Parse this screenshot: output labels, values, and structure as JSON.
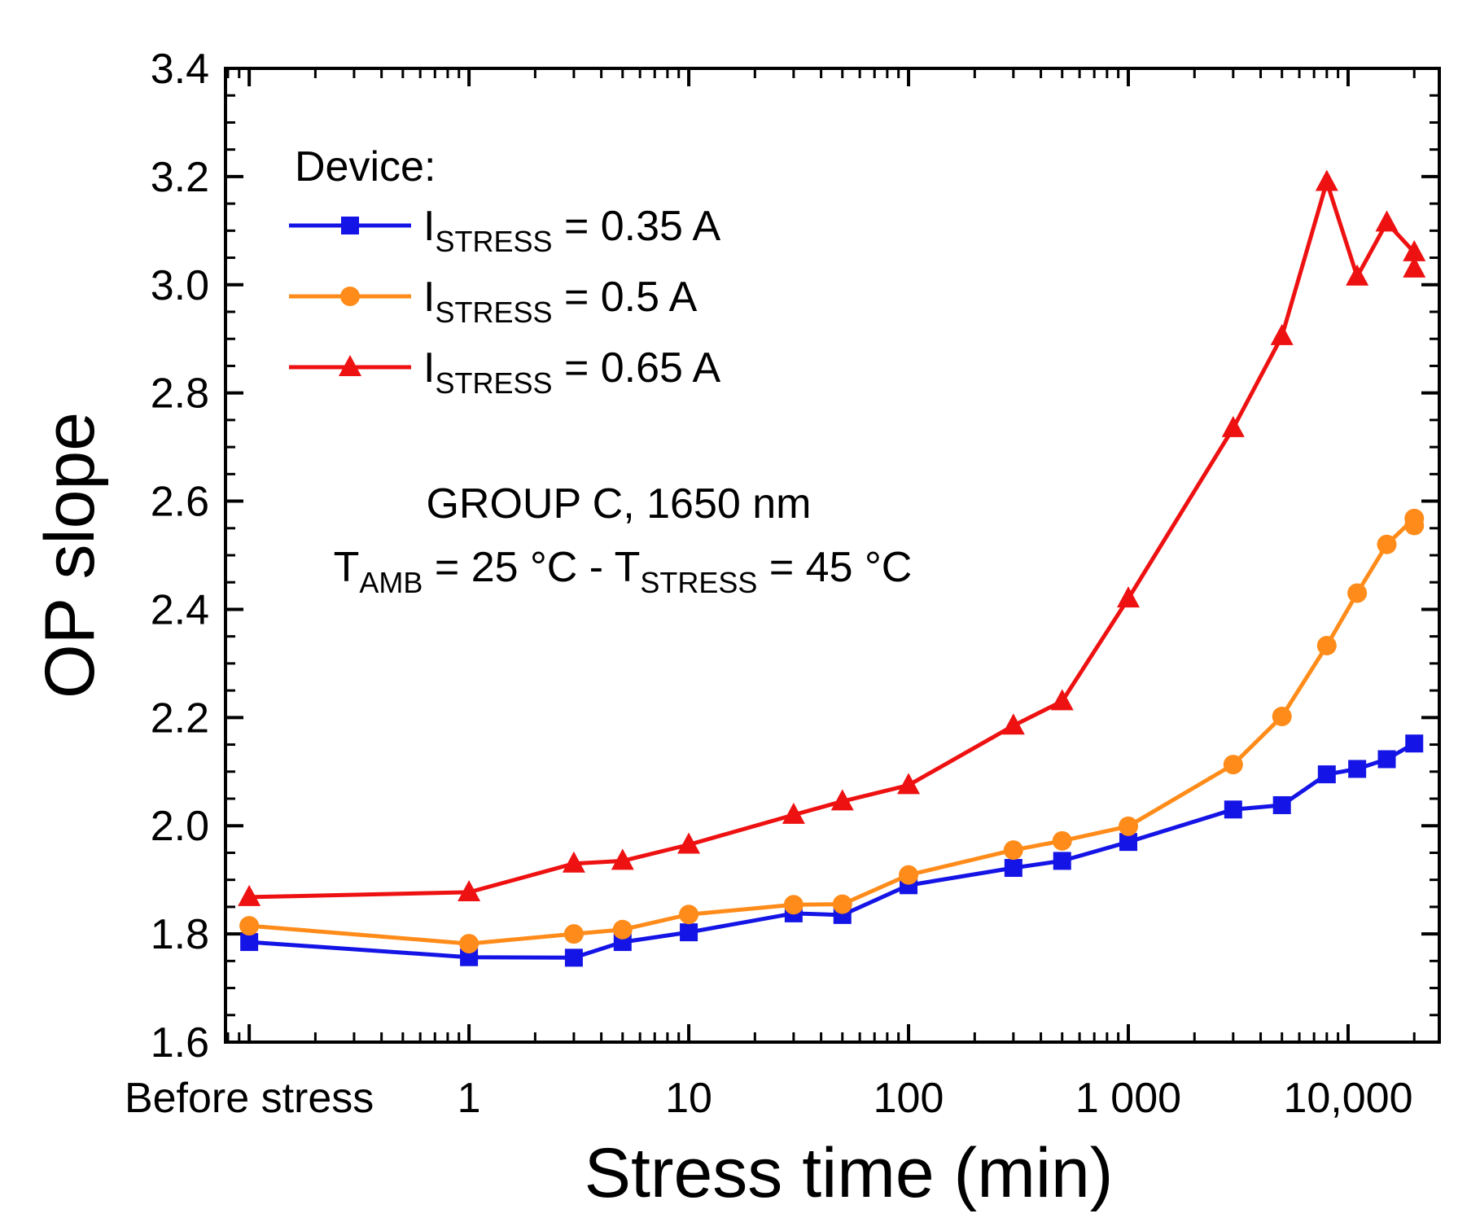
{
  "chart_data": {
    "type": "line",
    "xlabel": "Stress time (min)",
    "ylabel": "OP slope",
    "xscale": "log",
    "xlim": [
      0.078,
      26000
    ],
    "ylim": [
      1.6,
      3.4
    ],
    "yticks": [
      "1.6",
      "1.8",
      "2.0",
      "2.2",
      "2.4",
      "2.6",
      "2.8",
      "3.0",
      "3.2",
      "3.4"
    ],
    "xtick_labels": [
      "Before stress",
      "1",
      "10",
      "100",
      "1 000",
      "10,000"
    ],
    "xtick_values": [
      0.1,
      1,
      10,
      100,
      1000,
      10000
    ],
    "legend": {
      "title": "Device:",
      "items": [
        {
          "main": "I",
          "sub": "STRESS",
          "suffix": " = 0.35 A"
        },
        {
          "main": "I",
          "sub": "STRESS",
          "suffix": " = 0.5 A"
        },
        {
          "main": "I",
          "sub": "STRESS",
          "suffix": " = 0.65 A"
        }
      ]
    },
    "annotation": {
      "line1": "GROUP C, 1650 nm",
      "t1": "T",
      "t1_sub": "AMB",
      "mid": " = 25 °C - T",
      "t2_sub": "STRESS",
      "end": " = 45 °C"
    },
    "series": [
      {
        "name": "I_STRESS = 0.35 A",
        "color": "#1414e6",
        "marker": "square",
        "x": [
          0.1,
          1,
          3,
          5,
          10,
          30,
          50,
          100,
          300,
          500,
          1000,
          3000,
          5000,
          8000,
          11000,
          15000,
          20000
        ],
        "y": [
          1.785,
          1.757,
          1.756,
          1.785,
          1.803,
          1.838,
          1.835,
          1.89,
          1.922,
          1.935,
          1.97,
          2.03,
          2.038,
          2.095,
          2.105,
          2.123,
          2.152
        ]
      },
      {
        "name": "I_STRESS = 0.5 A",
        "color": "#ff8c1a",
        "marker": "circle",
        "x": [
          0.1,
          1,
          3,
          5,
          10,
          30,
          50,
          100,
          300,
          500,
          1000,
          3000,
          5000,
          8000,
          11000,
          15000,
          20000,
          20000
        ],
        "y": [
          1.815,
          1.782,
          1.8,
          1.808,
          1.836,
          1.854,
          1.855,
          1.909,
          1.955,
          1.972,
          1.999,
          2.113,
          2.202,
          2.333,
          2.43,
          2.52,
          2.568,
          2.555
        ]
      },
      {
        "name": "I_STRESS = 0.65 A",
        "color": "#ee1111",
        "marker": "triangle",
        "x": [
          0.1,
          1,
          3,
          5,
          10,
          30,
          50,
          100,
          300,
          500,
          1000,
          3000,
          5000,
          8000,
          11000,
          15000,
          20000,
          20000
        ],
        "y": [
          1.868,
          1.877,
          1.93,
          1.935,
          1.965,
          2.02,
          2.045,
          2.075,
          2.185,
          2.23,
          2.42,
          2.735,
          2.905,
          3.19,
          3.015,
          3.115,
          3.06,
          3.03
        ]
      }
    ]
  }
}
